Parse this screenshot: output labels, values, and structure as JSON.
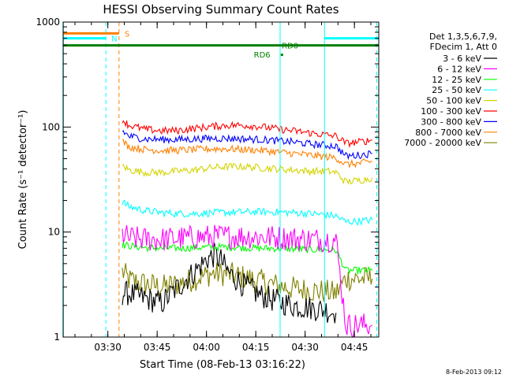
{
  "chart_data": {
    "type": "line",
    "title": "HESSI Observing Summary Count Rates",
    "xlabel": "Start Time (08-Feb-13 03:16:22)",
    "ylabel": "Count Rate (s⁻¹ detector⁻¹)",
    "x_unit": "minutes after 03:16:22",
    "xlim": [
      0,
      96
    ],
    "ylim": [
      1,
      1000
    ],
    "y_scale": "log",
    "x_ticks": [
      "03:30",
      "03:45",
      "04:00",
      "04:15",
      "04:30",
      "04:45"
    ],
    "x_tick_values": [
      13.6,
      28.6,
      43.6,
      58.6,
      73.6,
      88.6
    ],
    "y_ticks": [
      "1",
      "10",
      "100",
      "1000"
    ],
    "y_tick_values": [
      1,
      10,
      100,
      1000
    ],
    "grid": false,
    "legend_position": "right",
    "legend_header": [
      "Det 1,3,5,6,7,9,",
      "FDecim 1, Att 0"
    ],
    "series": [
      {
        "name": "3 - 6 keV",
        "color": "#000000",
        "x": [
          18,
          20,
          30,
          35,
          40,
          44,
          46,
          48,
          50,
          55,
          60,
          65,
          70,
          75,
          80,
          83
        ],
        "y": [
          2.6,
          2.6,
          2.1,
          3.0,
          4.2,
          5.6,
          6.0,
          5.4,
          4.2,
          3.1,
          2.5,
          2.2,
          2.0,
          1.9,
          1.8,
          1.7
        ]
      },
      {
        "name": "6 - 12 keV",
        "color": "#ff00ff",
        "x": [
          18,
          20,
          25,
          30,
          35,
          40,
          45,
          50,
          55,
          60,
          65,
          70,
          75,
          80,
          83,
          86,
          90,
          94
        ],
        "y": [
          9.5,
          8.8,
          8.5,
          8.5,
          8.7,
          8.9,
          9.0,
          9.1,
          9.1,
          9.0,
          8.9,
          8.7,
          8.5,
          8.5,
          8.4,
          1.3,
          1.3,
          1.3
        ]
      },
      {
        "name": "12 - 25 keV",
        "color": "#00ff00",
        "x": [
          18,
          20,
          25,
          30,
          35,
          40,
          45,
          50,
          55,
          60,
          65,
          70,
          75,
          80,
          83,
          86,
          90,
          94
        ],
        "y": [
          7.6,
          7.4,
          7.1,
          7.0,
          7.0,
          7.1,
          7.2,
          7.2,
          7.1,
          7.0,
          7.0,
          6.9,
          6.8,
          6.8,
          6.7,
          4.3,
          4.3,
          4.3
        ]
      },
      {
        "name": "25 - 50 keV",
        "color": "#00ffff",
        "x": [
          18,
          20,
          25,
          30,
          35,
          40,
          45,
          50,
          55,
          60,
          65,
          70,
          75,
          80,
          83,
          86,
          90,
          94
        ],
        "y": [
          19.5,
          17.5,
          16.0,
          15.3,
          15.0,
          15.0,
          15.2,
          15.4,
          15.5,
          15.6,
          15.5,
          15.3,
          15.0,
          14.6,
          14.2,
          12.5,
          12.7,
          13.0
        ]
      },
      {
        "name": "50 - 100 keV",
        "color": "#d4d400",
        "x": [
          18,
          20,
          25,
          30,
          35,
          40,
          45,
          50,
          55,
          60,
          65,
          70,
          75,
          80,
          83,
          86,
          90,
          94
        ],
        "y": [
          43,
          39,
          37,
          37,
          38,
          39,
          41,
          42,
          42,
          41,
          40,
          39,
          38,
          38,
          37,
          30,
          31,
          33
        ]
      },
      {
        "name": "100 - 300 keV",
        "color": "#ff0000",
        "x": [
          18,
          20,
          25,
          30,
          35,
          40,
          45,
          50,
          55,
          60,
          65,
          70,
          75,
          80,
          83,
          86,
          90,
          94
        ],
        "y": [
          118,
          104,
          95,
          92,
          93,
          97,
          101,
          104,
          104,
          101,
          96,
          92,
          88,
          84,
          82,
          70,
          72,
          75
        ]
      },
      {
        "name": "300 - 800 keV",
        "color": "#0000ff",
        "x": [
          18,
          20,
          25,
          30,
          35,
          40,
          45,
          50,
          55,
          60,
          65,
          70,
          75,
          80,
          83,
          86,
          90,
          94
        ],
        "y": [
          92,
          82,
          77,
          76,
          76,
          77,
          78,
          78,
          77,
          76,
          74,
          72,
          69,
          67,
          66,
          53,
          54,
          56
        ]
      },
      {
        "name": "800 - 7000 keV",
        "color": "#ff8000",
        "x": [
          18,
          20,
          25,
          30,
          35,
          40,
          45,
          50,
          55,
          60,
          65,
          70,
          75,
          80,
          83,
          86,
          90,
          94
        ],
        "y": [
          73,
          65,
          61,
          60,
          60,
          61,
          62,
          62,
          61,
          60,
          58,
          56,
          54,
          52,
          51,
          44,
          45,
          47
        ]
      },
      {
        "name": "7000 - 20000 keV",
        "color": "#808000",
        "x": [
          18,
          20,
          25,
          30,
          35,
          40,
          45,
          50,
          55,
          60,
          65,
          70,
          75,
          80,
          83,
          86,
          90,
          94
        ],
        "y": [
          4.2,
          3.5,
          3.2,
          3.0,
          3.2,
          3.6,
          4.0,
          4.0,
          3.7,
          3.4,
          3.1,
          2.9,
          2.8,
          2.7,
          2.6,
          3.6,
          3.6,
          3.6
        ]
      }
    ],
    "annotations": [
      {
        "label": "S",
        "color": "#ff8000",
        "level": 780,
        "x_start": 0,
        "x_end": 17
      },
      {
        "label": "N",
        "color": "#00ffff",
        "level": 700,
        "x_start": 0,
        "x_end": 13
      },
      {
        "label": "RD0",
        "color": "#008000",
        "level": 600
      },
      {
        "label": "RD6",
        "color": "#008000",
        "level": 500
      }
    ],
    "footer_date": "8-Feb-2013 09:12"
  }
}
